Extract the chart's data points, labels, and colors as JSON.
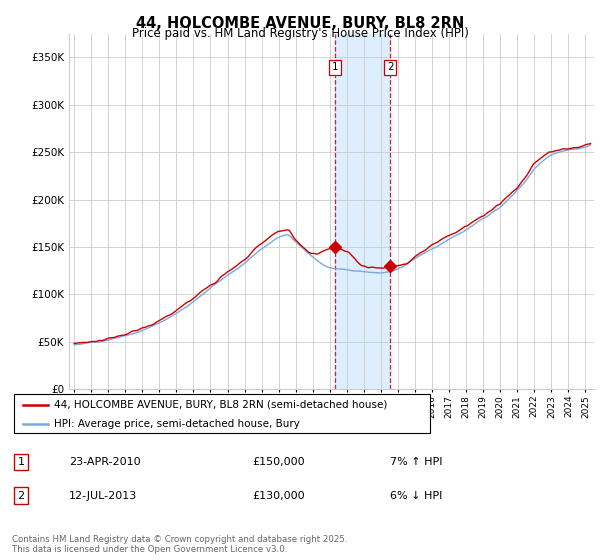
{
  "title": "44, HOLCOMBE AVENUE, BURY, BL8 2RN",
  "subtitle": "Price paid vs. HM Land Registry's House Price Index (HPI)",
  "ytick_values": [
    0,
    50000,
    100000,
    150000,
    200000,
    250000,
    300000,
    350000
  ],
  "ylim": [
    0,
    375000
  ],
  "xlim_start": 1994.7,
  "xlim_end": 2025.5,
  "transaction1": {
    "date_x": 2010.31,
    "price": 150000,
    "label": "1",
    "pct": "7%",
    "dir": "↑",
    "date_str": "23-APR-2010"
  },
  "transaction2": {
    "date_x": 2013.54,
    "price": 130000,
    "label": "2",
    "pct": "6%",
    "dir": "↓",
    "date_str": "12-JUL-2013"
  },
  "legend_line1": "44, HOLCOMBE AVENUE, BURY, BL8 2RN (semi-detached house)",
  "legend_line2": "HPI: Average price, semi-detached house, Bury",
  "table_row1": [
    "1",
    "23-APR-2010",
    "£150,000",
    "7% ↑ HPI"
  ],
  "table_row2": [
    "2",
    "12-JUL-2013",
    "£130,000",
    "6% ↓ HPI"
  ],
  "footer": "Contains HM Land Registry data © Crown copyright and database right 2025.\nThis data is licensed under the Open Government Licence v3.0.",
  "line_color_red": "#cc0000",
  "line_color_blue": "#7aaadd",
  "shade_color": "#ddeeff",
  "vline_color": "#cc0000",
  "background_color": "#ffffff",
  "grid_color": "#cccccc"
}
